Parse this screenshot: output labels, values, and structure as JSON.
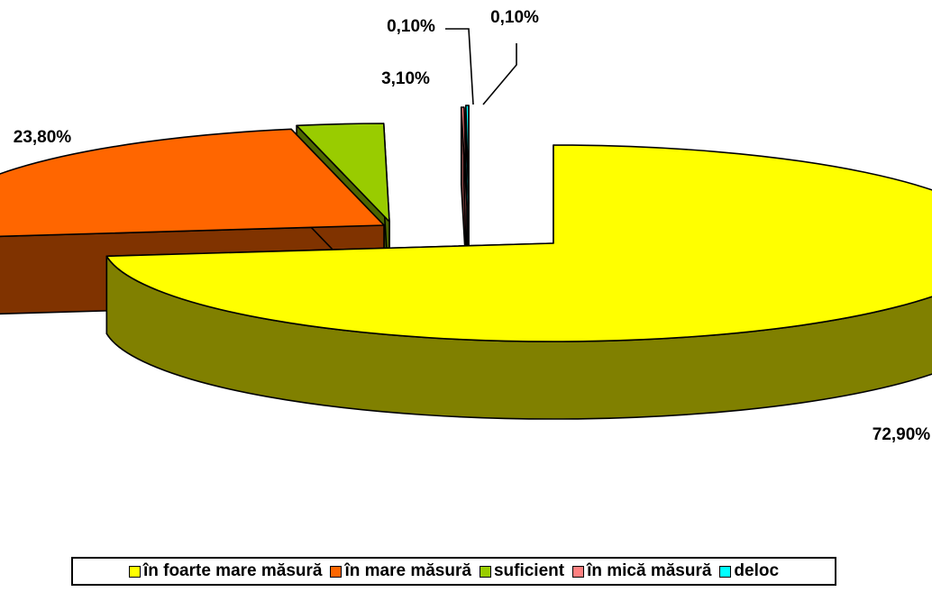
{
  "chart_data": {
    "type": "pie",
    "three_d": true,
    "exploded": true,
    "categories": [
      "în foarte mare măsură",
      "în mare măsură",
      "suficient",
      "în mică măsură",
      "deloc"
    ],
    "values": [
      72.9,
      23.8,
      3.1,
      0.1,
      0.1
    ],
    "data_labels": [
      "72,90%",
      "23,80%",
      "3,10%",
      "0,10%",
      "0,10%"
    ],
    "colors": [
      "#FFFF00",
      "#FF6600",
      "#99CC00",
      "#FF8080",
      "#00FFFF"
    ],
    "side_colors": [
      "#808000",
      "#803300",
      "#4D6600",
      "#804040",
      "#008080"
    ],
    "legend_position": "bottom"
  }
}
